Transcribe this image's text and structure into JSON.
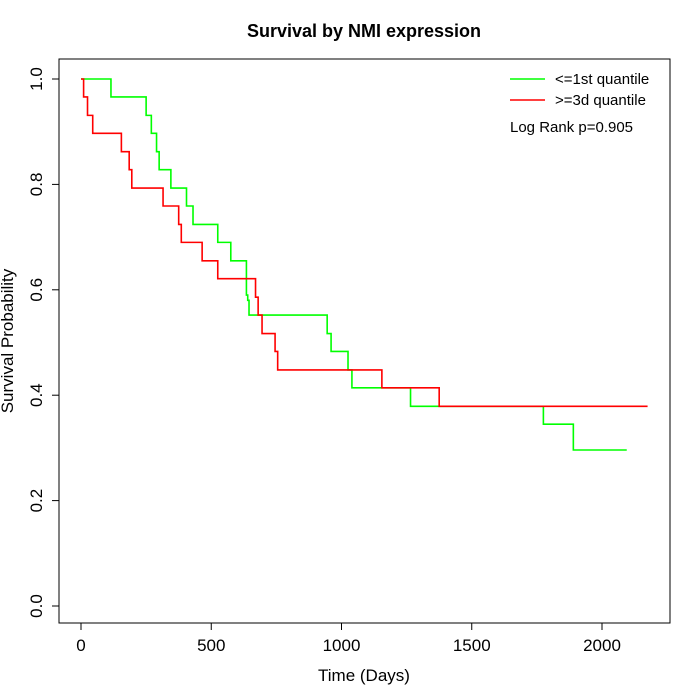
{
  "chart_data": {
    "type": "line",
    "title": "Survival by NMI expression",
    "xlabel": "Time (Days)",
    "ylabel": "Survival Probability",
    "xlim": [
      0,
      2180
    ],
    "ylim": [
      0,
      1.0
    ],
    "xticks": [
      0,
      500,
      1000,
      1500,
      2000
    ],
    "yticks": [
      0.0,
      0.2,
      0.4,
      0.6,
      0.8,
      1.0
    ],
    "xtick_labels": [
      "0",
      "500",
      "1000",
      "1500",
      "2000"
    ],
    "ytick_labels": [
      "0.0",
      "0.2",
      "0.4",
      "0.6",
      "0.8",
      "1.0"
    ],
    "grid": false,
    "legend_position": "top-right",
    "annotation": "Log Rank p=0.905",
    "series": [
      {
        "name": "<=1st quantile",
        "color": "#00ff00",
        "step": true,
        "x": [
          0,
          115,
          250,
          270,
          290,
          300,
          305,
          345,
          405,
          420,
          430,
          525,
          575,
          635,
          640,
          645,
          945,
          960,
          1025,
          1040,
          1265,
          1775,
          1890,
          2095
        ],
        "y": [
          1.0,
          0.966,
          0.931,
          0.897,
          0.862,
          0.828,
          0.828,
          0.793,
          0.759,
          0.759,
          0.724,
          0.69,
          0.655,
          0.59,
          0.58,
          0.552,
          0.517,
          0.483,
          0.448,
          0.414,
          0.379,
          0.345,
          0.296,
          0.296
        ]
      },
      {
        "name": ">=3d quantile",
        "color": "#ff0000",
        "step": true,
        "x": [
          0,
          10,
          25,
          45,
          155,
          185,
          195,
          315,
          375,
          385,
          465,
          525,
          670,
          680,
          695,
          745,
          755,
          1155,
          1375,
          2175
        ],
        "y": [
          1.0,
          0.966,
          0.931,
          0.897,
          0.862,
          0.828,
          0.793,
          0.759,
          0.724,
          0.69,
          0.655,
          0.621,
          0.586,
          0.552,
          0.517,
          0.483,
          0.448,
          0.414,
          0.379,
          0.379
        ]
      }
    ]
  }
}
